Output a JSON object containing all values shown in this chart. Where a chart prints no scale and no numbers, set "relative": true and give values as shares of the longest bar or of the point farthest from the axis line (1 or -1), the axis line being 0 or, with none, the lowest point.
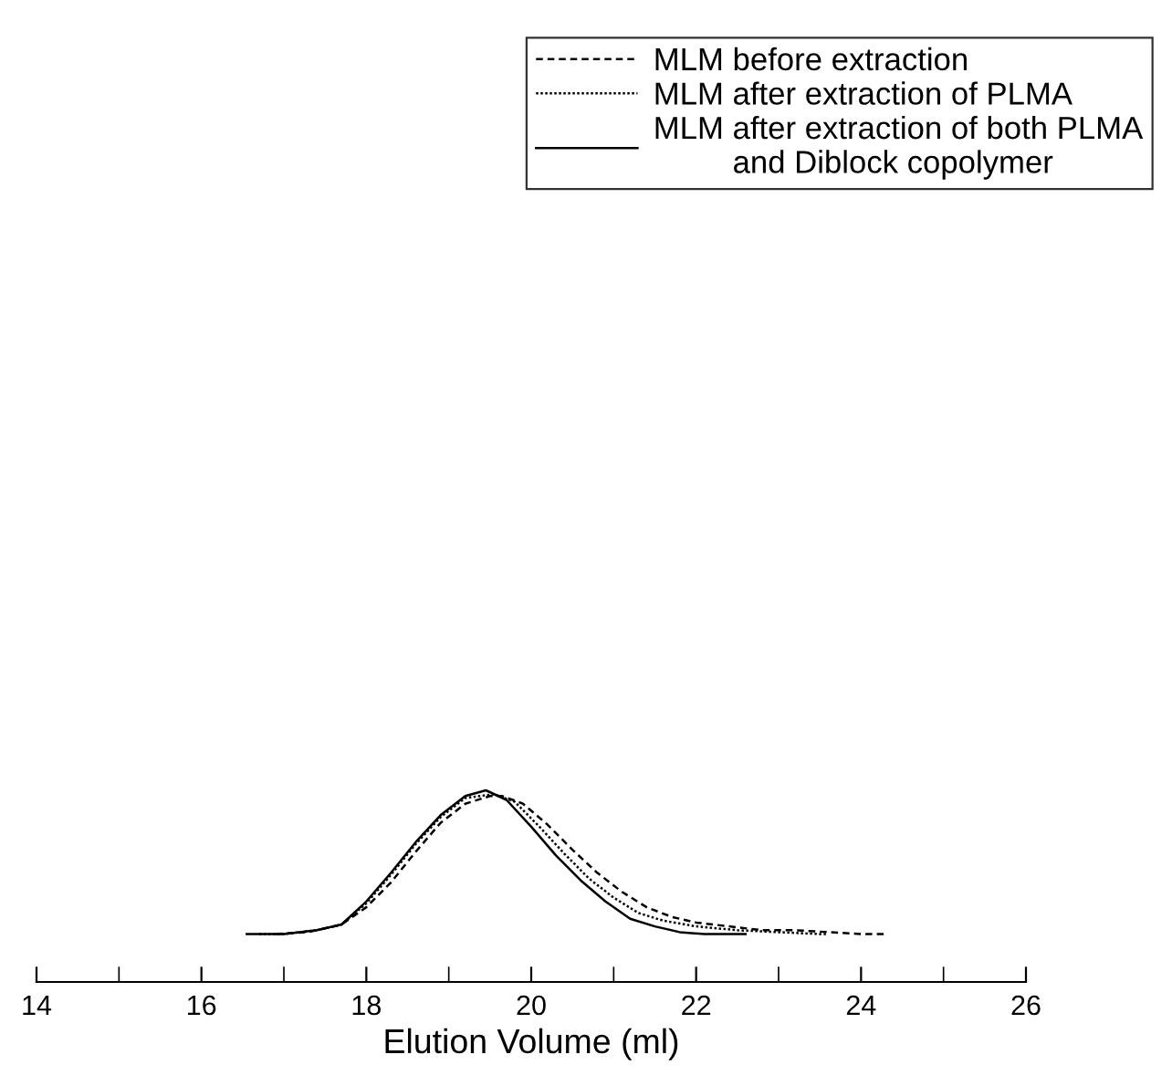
{
  "chart_data": {
    "type": "line",
    "relative": true,
    "xlabel": "Elution Volume (ml)",
    "xlim": [
      14,
      26
    ],
    "xticks": [
      14,
      {
        "value": 15,
        "label": null
      },
      16,
      {
        "value": 17,
        "label": null
      },
      18,
      {
        "value": 19,
        "label": null
      },
      20,
      {
        "value": 21,
        "label": null
      },
      22,
      {
        "value": 23,
        "label": null
      },
      24,
      {
        "value": 25,
        "label": null
      },
      26
    ],
    "tick_labels": "x",
    "grid": false,
    "legend": "top right",
    "marker": "none",
    "series": [
      {
        "name": "MLM before extraction",
        "color": "#000000",
        "line_style": "dashed",
        "x": [
          16.9,
          17.3,
          17.7,
          18.0,
          18.3,
          18.6,
          18.9,
          19.2,
          19.5,
          19.65,
          19.9,
          20.2,
          20.5,
          20.8,
          21.1,
          21.4,
          21.7,
          22.0,
          22.4,
          22.8,
          23.2,
          23.6,
          24.0,
          24.3
        ],
        "values": [
          0.25,
          0.26,
          0.3,
          0.39,
          0.52,
          0.68,
          0.83,
          0.93,
          0.97,
          0.97,
          0.93,
          0.82,
          0.69,
          0.57,
          0.47,
          0.39,
          0.34,
          0.31,
          0.29,
          0.27,
          0.27,
          0.26,
          0.25,
          0.25
        ]
      },
      {
        "name": "MLM after extraction of PLMA",
        "color": "#000000",
        "line_style": "dotted",
        "x": [
          16.7,
          17.0,
          17.4,
          17.7,
          18.0,
          18.3,
          18.6,
          18.9,
          19.2,
          19.55,
          19.8,
          20.1,
          20.4,
          20.7,
          21.0,
          21.3,
          21.6,
          22.0,
          22.5,
          23.0,
          23.5,
          23.6
        ],
        "values": [
          0.25,
          0.25,
          0.27,
          0.3,
          0.41,
          0.56,
          0.72,
          0.86,
          0.96,
          0.98,
          0.94,
          0.81,
          0.67,
          0.54,
          0.44,
          0.36,
          0.32,
          0.29,
          0.27,
          0.26,
          0.25,
          0.25
        ]
      },
      {
        "name": "MLM after extraction of both PLMA\n         and Diblock copolymer",
        "color": "#000000",
        "line_style": "solid",
        "x": [
          16.55,
          17.0,
          17.4,
          17.7,
          18.0,
          18.3,
          18.6,
          18.9,
          19.2,
          19.45,
          19.7,
          20.0,
          20.3,
          20.6,
          20.9,
          21.2,
          21.5,
          21.8,
          22.1,
          22.6
        ],
        "values": [
          0.25,
          0.25,
          0.27,
          0.3,
          0.42,
          0.57,
          0.73,
          0.87,
          0.97,
          1.0,
          0.95,
          0.81,
          0.66,
          0.53,
          0.42,
          0.33,
          0.29,
          0.26,
          0.25,
          0.25
        ]
      }
    ]
  }
}
